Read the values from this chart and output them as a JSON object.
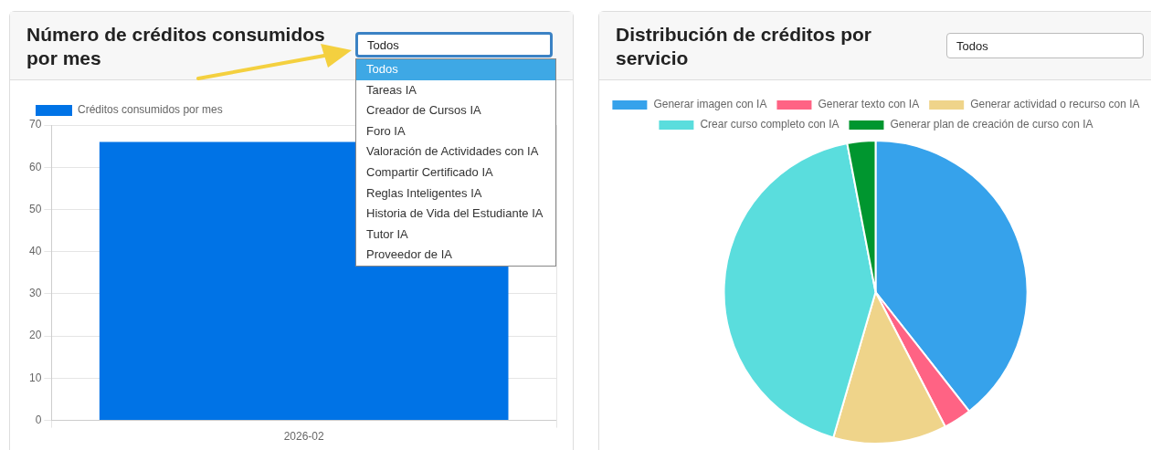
{
  "chart_data": [
    {
      "type": "bar",
      "title": "Número de créditos consumidos por mes",
      "categories": [
        "2026-02"
      ],
      "series": [
        {
          "name": "Créditos consumidos por mes",
          "color": "#0073e6",
          "values": [
            66
          ]
        }
      ],
      "ylim": [
        0,
        70
      ],
      "yticks": [
        0,
        10,
        20,
        30,
        40,
        50,
        60,
        70
      ],
      "grid": true,
      "legend": "top",
      "annotations": [
        "Todos",
        "Todos",
        "Tareas IA",
        "Creador de Cursos IA",
        "Foro IA",
        "Valoración de Actividades con IA",
        "Compartir Certificado IA",
        "Reglas Inteligentes IA",
        "Historia de Vida del Estudiante IA",
        "Tutor IA",
        "Proveedor de IA"
      ]
    },
    {
      "type": "pie",
      "title": "Distribución de créditos por servicio",
      "categories": [
        "Generar imagen con IA",
        "Generar texto con IA",
        "Generar actividad o recurso con IA",
        "Crear curso completo con IA",
        "Generar plan de creación de curso con IA"
      ],
      "values": [
        39.4,
        3.0,
        12.1,
        42.5,
        3.0
      ],
      "colors": [
        "#36a2eb",
        "#ff6384",
        "#efd48a",
        "#5adddd",
        "#00962f"
      ],
      "legend": "top",
      "annotations": [
        "Todos"
      ]
    }
  ]
}
